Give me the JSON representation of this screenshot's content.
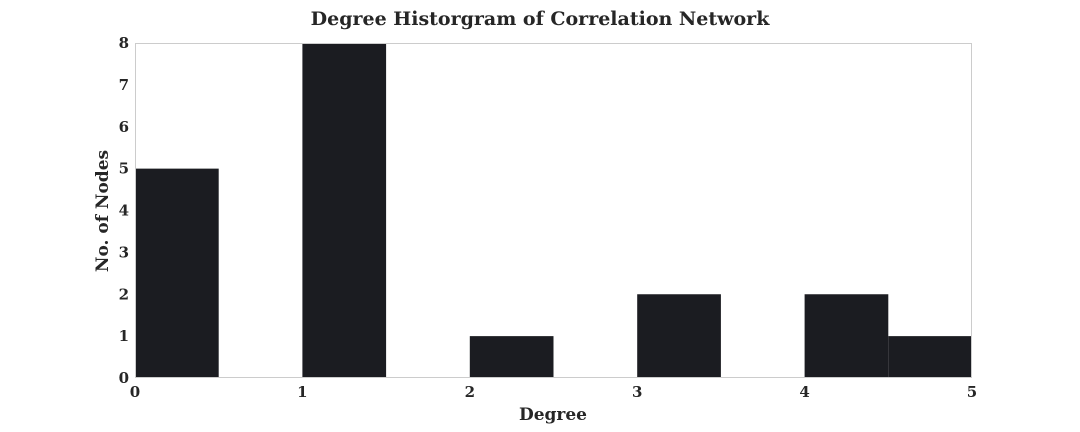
{
  "chart_data": {
    "type": "bar",
    "title": "Degree Historgram of Correlation Network",
    "xlabel": "Degree",
    "ylabel": "No. of Nodes",
    "xlim": [
      0,
      5
    ],
    "ylim": [
      0,
      8
    ],
    "x_ticks": [
      "0",
      "1",
      "2",
      "3",
      "4",
      "5"
    ],
    "y_ticks": [
      "0",
      "1",
      "2",
      "3",
      "4",
      "5",
      "6",
      "7",
      "8"
    ],
    "bins": [
      {
        "start": 0.0,
        "end": 0.5,
        "value": 5
      },
      {
        "start": 0.5,
        "end": 1.0,
        "value": 0
      },
      {
        "start": 1.0,
        "end": 1.5,
        "value": 8
      },
      {
        "start": 1.5,
        "end": 2.0,
        "value": 0
      },
      {
        "start": 2.0,
        "end": 2.5,
        "value": 1
      },
      {
        "start": 2.5,
        "end": 3.0,
        "value": 0
      },
      {
        "start": 3.0,
        "end": 3.5,
        "value": 2
      },
      {
        "start": 3.5,
        "end": 4.0,
        "value": 0
      },
      {
        "start": 4.0,
        "end": 4.5,
        "value": 2
      },
      {
        "start": 4.5,
        "end": 5.0,
        "value": 1
      }
    ],
    "grid": false,
    "legend": "none",
    "bar_color": "#1b1c21",
    "frame_color": "#cccccc",
    "text_color": "#262626"
  }
}
